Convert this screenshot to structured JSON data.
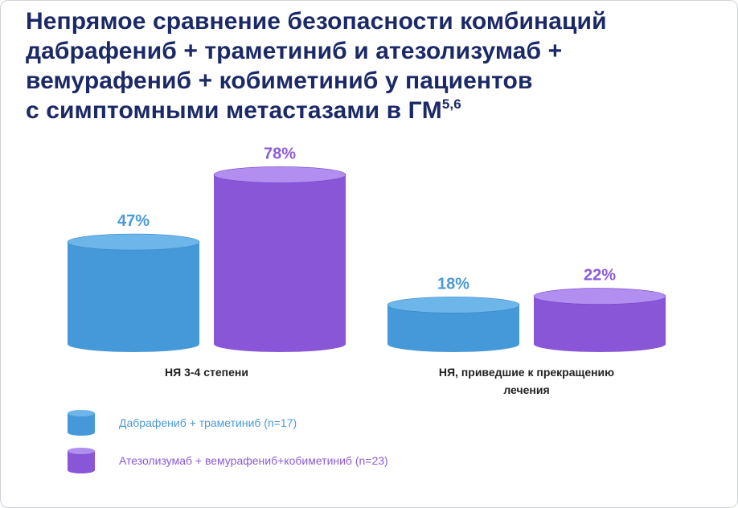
{
  "title": {
    "lines": [
      "Непрямое сравнение безопасности комбинаций",
      "дабрафениб + траметиниб и атезолизумаб +",
      "вемурафениб + кобиметиниб у пациентов",
      "с симптомными метастазами в ГМ"
    ],
    "superscript": "5,6"
  },
  "chart_data": {
    "type": "bar",
    "categories": [
      "НЯ 3-4 степени",
      "НЯ, приведшие к прекращению лечения"
    ],
    "category_label_lines": [
      [
        "НЯ 3-4 степени"
      ],
      [
        "НЯ, приведшие к прекращению",
        "лечения"
      ]
    ],
    "series": [
      {
        "name": "Дабрафениб + траметиниб (n=17)",
        "values": [
          47,
          18
        ],
        "labels": [
          "47%",
          "18%"
        ],
        "color": "#4a9ad8"
      },
      {
        "name": "Атезолизумаб + вемурафениб+кобиметиниб (n=23)",
        "values": [
          78,
          22
        ],
        "labels": [
          "78%",
          "22%"
        ],
        "color": "#8c5bd9"
      }
    ],
    "ylim": [
      0,
      100
    ],
    "unit": "%",
    "grid": false,
    "legend_position": "bottom-left",
    "bar_style": "3d-cylinder"
  }
}
